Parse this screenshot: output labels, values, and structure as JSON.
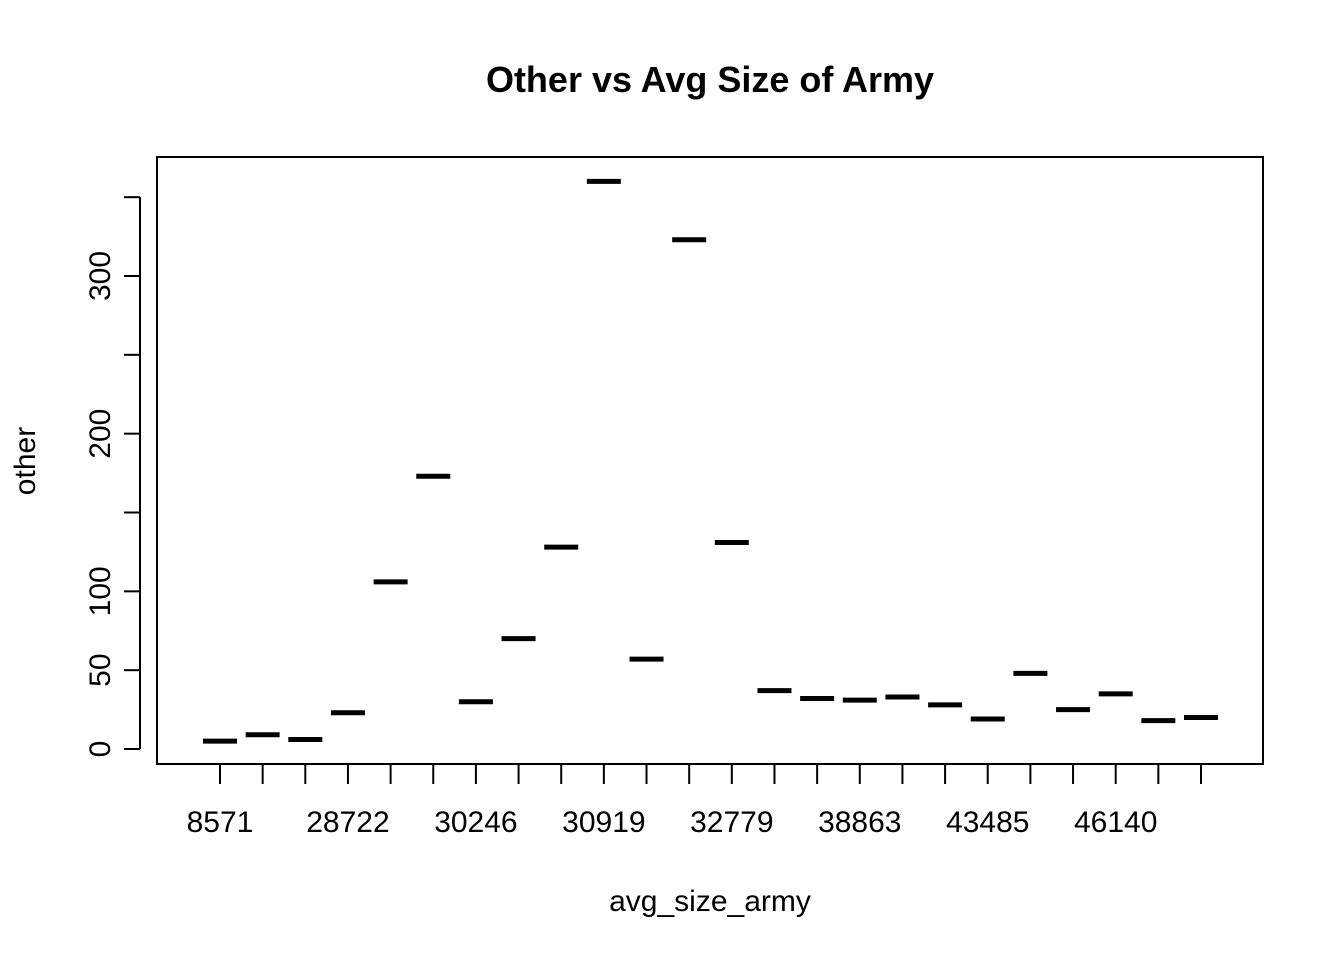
{
  "chart_data": {
    "type": "box",
    "title": "Other vs Avg Size of Army",
    "xlabel": "avg_size_army",
    "ylabel": "other",
    "x_tick_labels": [
      "8571",
      "28722",
      "30246",
      "30919",
      "32779",
      "38863",
      "43485",
      "46140"
    ],
    "x_tick_label_every": 3,
    "y_ticks": [
      0,
      50,
      100,
      200,
      300
    ],
    "y_minor_ticks": [
      150,
      250,
      350
    ],
    "ylim": [
      -8,
      376
    ],
    "grid": false,
    "legend": "none",
    "values": [
      5,
      9,
      6,
      23,
      106,
      173,
      30,
      70,
      128,
      360,
      57,
      323,
      131,
      37,
      32,
      31,
      33,
      28,
      19,
      48,
      25,
      35,
      18,
      20
    ]
  }
}
